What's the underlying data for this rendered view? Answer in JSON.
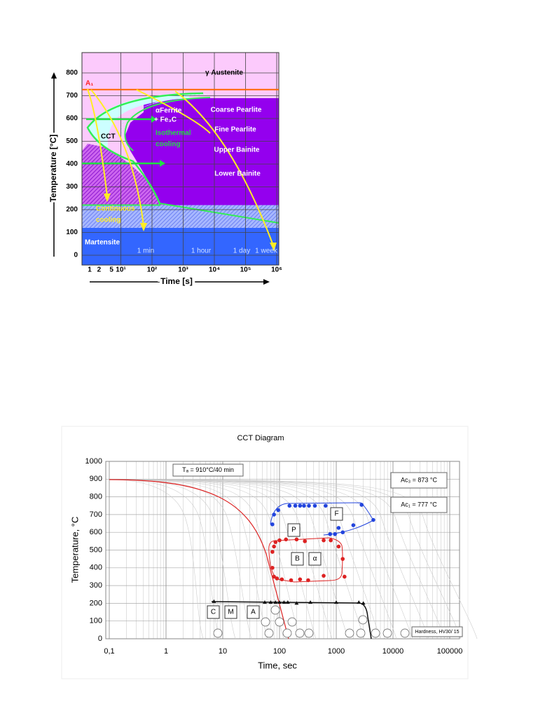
{
  "figure1": {
    "ylabel": "Temperature [°C]",
    "xlabel": "Time [s]",
    "yticks": [
      0,
      100,
      200,
      300,
      400,
      500,
      600,
      700,
      800
    ],
    "xticks": [
      1,
      2,
      5,
      {
        "value": 10,
        "label": "10¹"
      },
      {
        "value": 100,
        "label": "10²"
      },
      {
        "value": 1000,
        "label": "10³"
      },
      {
        "value": 10000,
        "label": "10⁴"
      },
      {
        "value": 100000,
        "label": "10⁵"
      },
      {
        "value": 1000000,
        "label": "10⁶"
      }
    ],
    "labels": [
      "γ Austenite",
      "A₁",
      "αFerrite",
      "+ Fe₃C",
      "Coarse Pearlite",
      "Fine Pearlite",
      "Upper Bainite",
      "Lower Bainite",
      "Isothermal",
      "cooling",
      "CCT",
      "Continuous",
      "cooling",
      "Martensite"
    ],
    "time_marks": [
      "1 min",
      "1 hour",
      "1 day",
      "1 week"
    ]
  },
  "figure2": {
    "title": "CCT Diagram",
    "xlabel": "Time, sec",
    "ylabel": "Temperature, °C",
    "yticks": [
      0,
      100,
      200,
      300,
      400,
      500,
      600,
      700,
      800,
      900,
      1000
    ],
    "xticks": [
      {
        "value": 0.1,
        "label": "0,1"
      },
      1,
      10,
      100,
      1000,
      10000,
      100000
    ],
    "annotations": [
      "Tₐ = 910°C/40 min",
      "Ac₃ = 873 °C",
      "Ac₁ = 777 °C",
      "Hardness, HV30/ 15"
    ],
    "phases": [
      "F",
      "P",
      "B",
      "α",
      "C",
      "M",
      "A"
    ],
    "series": [
      {
        "color": "#2244dd",
        "x": [
          75,
          80,
          95,
          150,
          190,
          230,
          270,
          330,
          420,
          650,
          2800,
          780,
          950,
          1100,
          1300,
          2000,
          4500
        ],
        "values": [
          645,
          700,
          725,
          750,
          750,
          750,
          750,
          750,
          750,
          750,
          755,
          590,
          590,
          625,
          600,
          640,
          670
        ]
      },
      {
        "color": "#dd2222",
        "x": [
          75,
          80,
          85,
          100,
          130,
          200,
          280,
          600,
          800,
          1100,
          75,
          80,
          90,
          110,
          160,
          230,
          320,
          600,
          1400,
          1300
        ],
        "values": [
          490,
          520,
          545,
          555,
          560,
          560,
          550,
          555,
          555,
          520,
          400,
          350,
          340,
          335,
          330,
          335,
          330,
          355,
          350,
          450
        ]
      },
      {
        "color": "#111111",
        "x": [
          7,
          55,
          70,
          85,
          100,
          120,
          140,
          200,
          350,
          1000,
          2500,
          3000
        ],
        "values": [
          210,
          205,
          205,
          205,
          205,
          205,
          205,
          200,
          205,
          205,
          205,
          200
        ]
      }
    ]
  }
}
